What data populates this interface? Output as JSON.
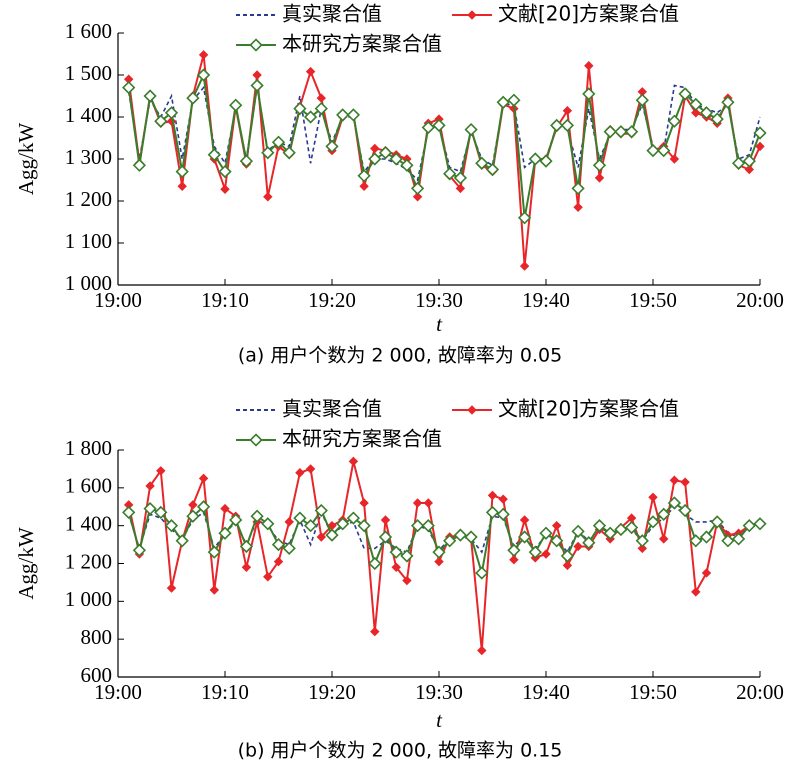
{
  "chart_data": [
    {
      "type": "line",
      "caption": "(a) 用户个数为 2 000, 故障率为 0.05",
      "xlabel": "t",
      "ylabel": "Agg/kW",
      "x": [
        1,
        2,
        3,
        4,
        5,
        6,
        7,
        8,
        9,
        10,
        11,
        12,
        13,
        14,
        15,
        16,
        17,
        18,
        19,
        20,
        21,
        22,
        23,
        24,
        25,
        26,
        27,
        28,
        29,
        30,
        31,
        32,
        33,
        34,
        35,
        36,
        37,
        38,
        39,
        40,
        41,
        42,
        43,
        44,
        45,
        46,
        47,
        48,
        49,
        50,
        51,
        52,
        53,
        54,
        55,
        56,
        57,
        58,
        59,
        60
      ],
      "xlim": [
        0,
        60
      ],
      "xticks": [
        {
          "value": 0,
          "label": "19:00"
        },
        {
          "value": 10,
          "label": "19:10"
        },
        {
          "value": 20,
          "label": "19:20"
        },
        {
          "value": 30,
          "label": "19:30"
        },
        {
          "value": 40,
          "label": "19:40"
        },
        {
          "value": 50,
          "label": "19:50"
        },
        {
          "value": 60,
          "label": "20:00"
        }
      ],
      "ylim": [
        1000,
        1600
      ],
      "yticks": [
        {
          "value": 1000,
          "label": "1 000"
        },
        {
          "value": 1100,
          "label": "1 100"
        },
        {
          "value": 1200,
          "label": "1 200"
        },
        {
          "value": 1300,
          "label": "1 300"
        },
        {
          "value": 1400,
          "label": "1 400"
        },
        {
          "value": 1500,
          "label": "1 500"
        },
        {
          "value": 1600,
          "label": "1 600"
        }
      ],
      "series": [
        {
          "name": "真实聚合值",
          "color": "#2b3990",
          "dash": true,
          "marker": "none",
          "values": [
            1460,
            1300,
            1440,
            1400,
            1450,
            1300,
            1440,
            1470,
            1330,
            1290,
            1420,
            1300,
            1470,
            1320,
            1340,
            1330,
            1450,
            1290,
            1420,
            1340,
            1400,
            1400,
            1270,
            1300,
            1300,
            1290,
            1275,
            1250,
            1370,
            1380,
            1280,
            1270,
            1365,
            1300,
            1285,
            1430,
            1430,
            1280,
            1300,
            1300,
            1380,
            1370,
            1280,
            1420,
            1300,
            1360,
            1370,
            1370,
            1430,
            1330,
            1320,
            1475,
            1470,
            1430,
            1420,
            1410,
            1430,
            1300,
            1310,
            1400
          ]
        },
        {
          "name": "文献[20]方案聚合值",
          "color": "#e8262a",
          "dash": false,
          "marker": "diamond",
          "values": [
            1490,
            1290,
            1450,
            1385,
            1390,
            1235,
            1450,
            1548,
            1300,
            1228,
            1425,
            1288,
            1500,
            1210,
            1330,
            1310,
            1425,
            1508,
            1445,
            1320,
            1400,
            1408,
            1235,
            1325,
            1320,
            1310,
            1300,
            1210,
            1385,
            1395,
            1260,
            1230,
            1372,
            1285,
            1270,
            1430,
            1420,
            1045,
            1300,
            1300,
            1375,
            1415,
            1185,
            1522,
            1255,
            1370,
            1360,
            1360,
            1460,
            1320,
            1330,
            1300,
            1450,
            1410,
            1400,
            1385,
            1445,
            1285,
            1275,
            1330
          ]
        },
        {
          "name": "本研究方案聚合值",
          "color": "#3a7d2c",
          "dash": false,
          "marker": "open-diamond",
          "values": [
            1470,
            1285,
            1450,
            1390,
            1410,
            1270,
            1445,
            1500,
            1310,
            1270,
            1428,
            1295,
            1475,
            1315,
            1340,
            1315,
            1420,
            1400,
            1420,
            1330,
            1405,
            1405,
            1260,
            1300,
            1315,
            1300,
            1285,
            1230,
            1375,
            1380,
            1265,
            1255,
            1370,
            1290,
            1275,
            1435,
            1440,
            1160,
            1300,
            1295,
            1380,
            1380,
            1230,
            1455,
            1285,
            1365,
            1365,
            1365,
            1440,
            1320,
            1320,
            1390,
            1455,
            1430,
            1410,
            1395,
            1435,
            1290,
            1295,
            1362
          ]
        }
      ]
    },
    {
      "type": "line",
      "caption": "(b) 用户个数为 2 000, 故障率为 0.15",
      "xlabel": "t",
      "ylabel": "Agg/kW",
      "x": [
        1,
        2,
        3,
        4,
        5,
        6,
        7,
        8,
        9,
        10,
        11,
        12,
        13,
        14,
        15,
        16,
        17,
        18,
        19,
        20,
        21,
        22,
        23,
        24,
        25,
        26,
        27,
        28,
        29,
        30,
        31,
        32,
        33,
        34,
        35,
        36,
        37,
        38,
        39,
        40,
        41,
        42,
        43,
        44,
        45,
        46,
        47,
        48,
        49,
        50,
        51,
        52,
        53,
        54,
        55,
        56,
        57,
        58,
        59,
        60
      ],
      "xlim": [
        0,
        60
      ],
      "xticks": [
        {
          "value": 0,
          "label": "19:00"
        },
        {
          "value": 10,
          "label": "19:10"
        },
        {
          "value": 20,
          "label": "19:20"
        },
        {
          "value": 30,
          "label": "19:30"
        },
        {
          "value": 40,
          "label": "19:40"
        },
        {
          "value": 50,
          "label": "19:50"
        },
        {
          "value": 60,
          "label": "20:00"
        }
      ],
      "ylim": [
        600,
        1800
      ],
      "yticks": [
        600,
        800,
        {
          "value": 1000,
          "label": "1 000"
        },
        {
          "value": 1200,
          "label": "1 200"
        },
        {
          "value": 1400,
          "label": "1 400"
        },
        {
          "value": 1600,
          "label": "1 600"
        },
        {
          "value": 1800,
          "label": "1 800"
        }
      ],
      "series": [
        {
          "name": "真实聚合值",
          "color": "#2b3990",
          "dash": true,
          "marker": "none",
          "values": [
            1460,
            1280,
            1460,
            1440,
            1380,
            1330,
            1430,
            1470,
            1280,
            1360,
            1420,
            1300,
            1430,
            1400,
            1320,
            1300,
            1430,
            1300,
            1470,
            1350,
            1400,
            1420,
            1280,
            1280,
            1320,
            1280,
            1260,
            1400,
            1380,
            1270,
            1330,
            1340,
            1330,
            1260,
            1450,
            1440,
            1290,
            1350,
            1280,
            1350,
            1330,
            1260,
            1370,
            1320,
            1390,
            1360,
            1370,
            1380,
            1320,
            1400,
            1440,
            1500,
            1460,
            1420,
            1420,
            1430,
            1360,
            1340,
            1400,
            1420
          ]
        },
        {
          "name": "文献[20]方案聚合值",
          "color": "#e8262a",
          "dash": false,
          "marker": "diamond",
          "values": [
            1510,
            1250,
            1610,
            1690,
            1070,
            1320,
            1510,
            1650,
            1060,
            1490,
            1450,
            1180,
            1420,
            1130,
            1210,
            1420,
            1680,
            1700,
            1340,
            1400,
            1430,
            1740,
            1520,
            840,
            1430,
            1180,
            1110,
            1520,
            1520,
            1210,
            1340,
            1350,
            1330,
            740,
            1560,
            1540,
            1220,
            1430,
            1230,
            1250,
            1400,
            1190,
            1290,
            1290,
            1380,
            1330,
            1390,
            1440,
            1280,
            1550,
            1330,
            1640,
            1630,
            1050,
            1150,
            1420,
            1350,
            1360,
            1400,
            1410
          ]
        },
        {
          "name": "本研究方案聚合值",
          "color": "#3a7d2c",
          "dash": false,
          "marker": "open-diamond",
          "values": [
            1470,
            1270,
            1490,
            1470,
            1400,
            1320,
            1450,
            1500,
            1260,
            1360,
            1430,
            1290,
            1450,
            1410,
            1300,
            1280,
            1440,
            1400,
            1480,
            1350,
            1410,
            1440,
            1400,
            1200,
            1340,
            1260,
            1240,
            1400,
            1400,
            1260,
            1320,
            1350,
            1340,
            1150,
            1470,
            1460,
            1270,
            1340,
            1260,
            1360,
            1320,
            1240,
            1370,
            1310,
            1400,
            1360,
            1380,
            1390,
            1320,
            1420,
            1460,
            1520,
            1480,
            1320,
            1340,
            1420,
            1320,
            1330,
            1400,
            1410
          ]
        }
      ]
    }
  ]
}
